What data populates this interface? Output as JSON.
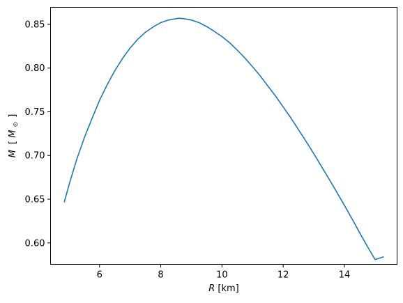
{
  "chart_data": {
    "type": "line",
    "xlabel": {
      "symbol": "R",
      "unit": "[km]"
    },
    "ylabel": {
      "symbol": "M",
      "unit_open": "[",
      "unit_symbol": "M",
      "unit_subscript": "⊙",
      "unit_close": "]"
    },
    "xlim": [
      4.4,
      15.72
    ],
    "ylim": [
      0.5755,
      0.8695
    ],
    "xticks": [
      6,
      8,
      10,
      12,
      14
    ],
    "xtick_labels": [
      "6",
      "8",
      "10",
      "12",
      "14"
    ],
    "yticks": [
      0.6,
      0.65,
      0.7,
      0.75,
      0.8,
      0.85
    ],
    "ytick_labels": [
      "0.60",
      "0.65",
      "0.70",
      "0.75",
      "0.80",
      "0.85"
    ],
    "grid": false,
    "series": [
      {
        "color": "#1f77b4",
        "x": [
          4.85,
          5.0,
          5.25,
          5.5,
          5.75,
          6.0,
          6.25,
          6.5,
          6.75,
          7.0,
          7.25,
          7.5,
          7.75,
          8.0,
          8.25,
          8.5,
          8.6,
          8.75,
          9.0,
          9.25,
          9.5,
          9.75,
          10.0,
          10.25,
          10.5,
          10.75,
          11.0,
          11.25,
          11.5,
          11.75,
          12.0,
          12.25,
          12.5,
          12.75,
          13.0,
          13.25,
          13.5,
          13.75,
          14.0,
          14.25,
          14.5,
          14.75,
          15.0,
          15.27
        ],
        "y": [
          0.647,
          0.666,
          0.695,
          0.72,
          0.742,
          0.763,
          0.781,
          0.797,
          0.811,
          0.823,
          0.833,
          0.841,
          0.847,
          0.852,
          0.855,
          0.8565,
          0.857,
          0.8565,
          0.855,
          0.852,
          0.8475,
          0.842,
          0.836,
          0.829,
          0.8205,
          0.8115,
          0.8015,
          0.791,
          0.7795,
          0.768,
          0.7555,
          0.743,
          0.7295,
          0.716,
          0.702,
          0.6875,
          0.673,
          0.658,
          0.643,
          0.6275,
          0.6115,
          0.596,
          0.581,
          0.584
        ]
      }
    ]
  }
}
